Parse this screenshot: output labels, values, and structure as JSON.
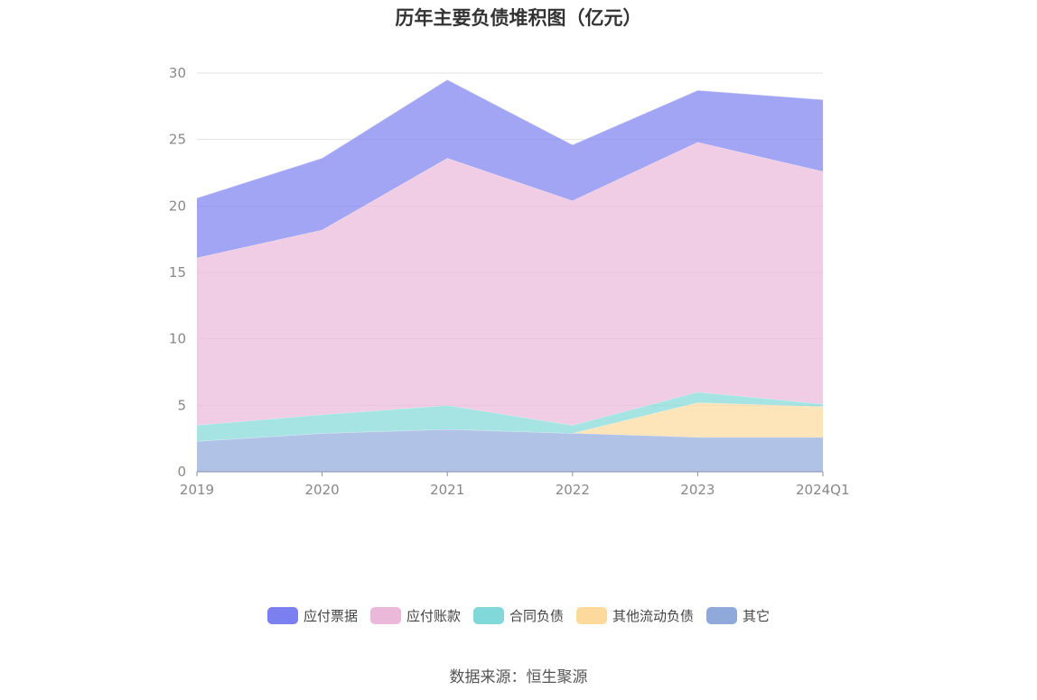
{
  "title": "历年主要负债堆积图（亿元）",
  "source": "数据来源：恒生聚源",
  "chart_data": {
    "type": "area",
    "stacked": true,
    "categories": [
      "2019",
      "2020",
      "2021",
      "2022",
      "2023",
      "2024Q1"
    ],
    "ylim": [
      0,
      30
    ],
    "yticks": [
      0,
      5,
      10,
      15,
      20,
      25,
      30
    ],
    "grid": true,
    "legend_position": "bottom",
    "series": [
      {
        "name": "其它",
        "color": "#8fa9db",
        "values": [
          2.3,
          2.9,
          3.2,
          2.9,
          2.6,
          2.6
        ]
      },
      {
        "name": "其他流动负债",
        "color": "#fdd99b",
        "values": [
          0.0,
          0.0,
          0.0,
          0.0,
          2.6,
          2.3
        ]
      },
      {
        "name": "合同负债",
        "color": "#80d8d8",
        "values": [
          1.2,
          1.4,
          1.8,
          0.6,
          0.8,
          0.2
        ]
      },
      {
        "name": "应付账款",
        "color": "#eab8d8",
        "values": [
          12.6,
          13.9,
          18.6,
          16.9,
          18.8,
          17.5
        ]
      },
      {
        "name": "应付票据",
        "color": "#7b7ff0",
        "values": [
          4.5,
          5.4,
          5.9,
          4.2,
          3.9,
          5.4
        ]
      }
    ],
    "legend_order": [
      "应付票据",
      "应付账款",
      "合同负债",
      "其他流动负债",
      "其它"
    ]
  }
}
